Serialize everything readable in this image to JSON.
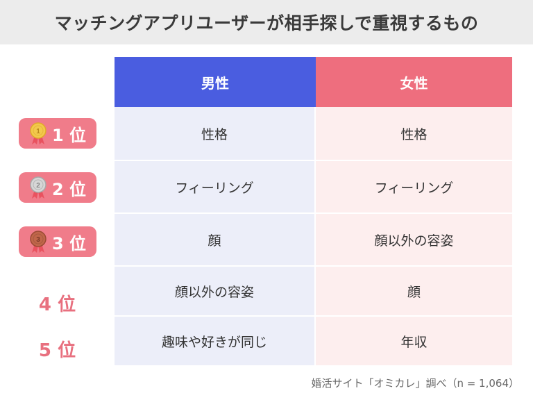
{
  "title": "マッチングアプリユーザーが相手探しで重視するもの",
  "columns": {
    "male": "男性",
    "female": "女性"
  },
  "rows": [
    {
      "rank": "1 位",
      "medal": "gold-medal-icon",
      "male": "性格",
      "female": "性格"
    },
    {
      "rank": "2 位",
      "medal": "silver-medal-icon",
      "male": "フィーリング",
      "female": "フィーリング"
    },
    {
      "rank": "3 位",
      "medal": "bronze-medal-icon",
      "male": "顔",
      "female": "顔以外の容姿"
    },
    {
      "rank": "4 位",
      "male": "顔以外の容姿",
      "female": "顔"
    },
    {
      "rank": "5 位",
      "male": "趣味や好きが同じ",
      "female": "年収"
    }
  ],
  "source_note": "婚活サイト「オミカレ」調べ（n = 1,064）",
  "colors": {
    "male_header": "#4a5de0",
    "female_header": "#ee6e7e",
    "male_cell": "#eceef9",
    "female_cell": "#fdeeee",
    "rank_pill": "#f07c8a",
    "gold": "#f2c94c",
    "silver": "#c8c8c8",
    "bronze": "#c0664a"
  }
}
